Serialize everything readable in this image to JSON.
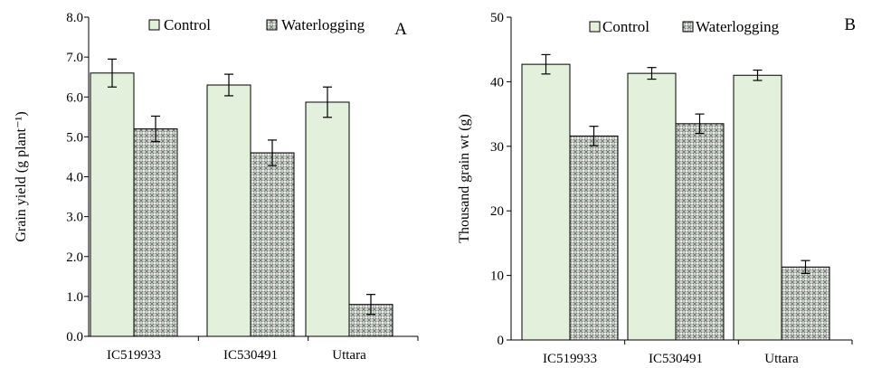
{
  "colors": {
    "control": "#e3f1dc",
    "waterlogging_pattern": "crosshatch-gray"
  },
  "chart_data": [
    {
      "type": "bar",
      "panel_label": "A",
      "ylabel": "Grain yield (g plant⁻¹)",
      "categories": [
        "IC519933",
        "IC530491",
        "Uttara"
      ],
      "series": [
        {
          "name": "Control",
          "values": [
            6.6,
            6.3,
            5.87
          ],
          "errors": [
            0.35,
            0.27,
            0.38
          ]
        },
        {
          "name": "Waterlogging",
          "values": [
            5.2,
            4.6,
            0.8
          ],
          "errors": [
            0.32,
            0.32,
            0.25
          ]
        }
      ],
      "ylim": [
        0,
        8
      ],
      "yticks": [
        0,
        1,
        2,
        3,
        4,
        5,
        6,
        7,
        8
      ],
      "ytick_labels": [
        "0.0",
        "1.0",
        "2.0",
        "3.0",
        "4.0",
        "5.0",
        "6.0",
        "7.0",
        "8.0"
      ],
      "legend": "top-center",
      "grid": false
    },
    {
      "type": "bar",
      "panel_label": "B",
      "ylabel": "Thousand grain wt (g)",
      "categories": [
        "IC519933",
        "IC530491",
        "Uttara"
      ],
      "series": [
        {
          "name": "Control",
          "values": [
            42.7,
            41.3,
            41.0
          ],
          "errors": [
            1.5,
            0.9,
            0.8
          ]
        },
        {
          "name": "Waterlogging",
          "values": [
            31.6,
            33.5,
            11.3
          ],
          "errors": [
            1.5,
            1.5,
            1.0
          ]
        }
      ],
      "ylim": [
        0,
        50
      ],
      "yticks": [
        0,
        10,
        20,
        30,
        40,
        50
      ],
      "ytick_labels": [
        "0",
        "10",
        "20",
        "30",
        "40",
        "50"
      ],
      "legend": "top-center",
      "grid": false
    }
  ]
}
